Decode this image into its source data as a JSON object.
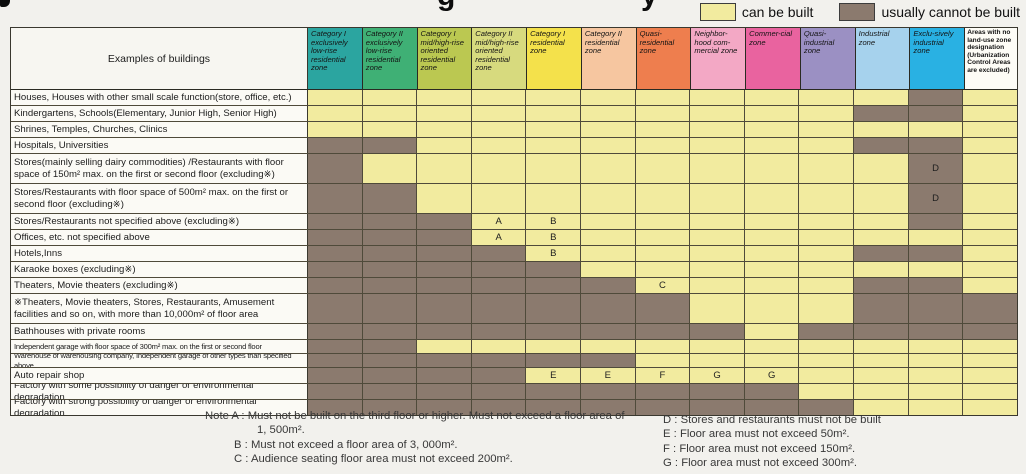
{
  "cropped_title": {
    "glyph1": "g",
    "glyph2": "y"
  },
  "legend": {
    "can_label": "can be built",
    "can_color": "#f2eb9f",
    "cannot_label": "usually cannot be built",
    "cannot_color": "#8b7a6e"
  },
  "table": {
    "corner_header": "Examples of buildings",
    "cell_colors": {
      "can": "#f2eb9f",
      "cannot": "#8b7a6e"
    },
    "cell_legend": {
      "Y": "can be built",
      "N": "usually cannot be built"
    },
    "columns": [
      {
        "label": "Category I exclusively low-rise residential zone",
        "color": "#2ba5a0"
      },
      {
        "label": "Category II exclusively low-rise residential zone",
        "color": "#3fb075"
      },
      {
        "label": "Category I mid/high-rise oriented residential zone",
        "color": "#bbc851"
      },
      {
        "label": "Category II mid/high-rise oriented residential zone",
        "color": "#d7da7e"
      },
      {
        "label": "Category I residential zone",
        "color": "#f4e14b"
      },
      {
        "label": "Category II residential zone",
        "color": "#f6c6a0"
      },
      {
        "label": "Quasi-residential zone",
        "color": "#ee7e4e"
      },
      {
        "label": "Neighbor-hood com-mercial zone",
        "color": "#f3a8c5"
      },
      {
        "label": "Commer-cial zone",
        "color": "#e9639f"
      },
      {
        "label": "Quasi-industrial zone",
        "color": "#9b90c3"
      },
      {
        "label": "Industrial zone",
        "color": "#a6d2ed"
      },
      {
        "label": "Exclu-sively industrial zone",
        "color": "#29b1e3"
      },
      {
        "label": "Areas with no land-use zone designation (Urbanization Control Areas are excluded)",
        "color": "#fdfcf6"
      }
    ],
    "rows": [
      {
        "label": "Houses, Houses with other small scale function(store, office, etc.)",
        "lines": 1,
        "small": false,
        "cells": [
          "Y",
          "Y",
          "Y",
          "Y",
          "Y",
          "Y",
          "Y",
          "Y",
          "Y",
          "Y",
          "Y",
          "N",
          "Y"
        ]
      },
      {
        "label": "Kindergartens, Schools(Elementary, Junior High, Senior High)",
        "lines": 1,
        "small": false,
        "cells": [
          "Y",
          "Y",
          "Y",
          "Y",
          "Y",
          "Y",
          "Y",
          "Y",
          "Y",
          "Y",
          "N",
          "N",
          "Y"
        ]
      },
      {
        "label": "Shrines, Temples, Churches, Clinics",
        "lines": 1,
        "small": false,
        "cells": [
          "Y",
          "Y",
          "Y",
          "Y",
          "Y",
          "Y",
          "Y",
          "Y",
          "Y",
          "Y",
          "Y",
          "Y",
          "Y"
        ]
      },
      {
        "label": "Hospitals, Universities",
        "lines": 1,
        "small": false,
        "cells": [
          "N",
          "N",
          "Y",
          "Y",
          "Y",
          "Y",
          "Y",
          "Y",
          "Y",
          "Y",
          "N",
          "N",
          "Y"
        ]
      },
      {
        "label": "Stores(mainly selling dairy commodities) /Restaurants with floor space of 150m² max. on the first or second floor (excluding※)",
        "lines": 2,
        "small": false,
        "cells": [
          "N",
          "Y",
          "Y",
          "Y",
          "Y",
          "Y",
          "Y",
          "Y",
          "Y",
          "Y",
          "Y",
          "D",
          "Y"
        ]
      },
      {
        "label": "Stores/Restaurants with floor space of 500m² max. on the first or second floor (excluding※)",
        "lines": 2,
        "small": false,
        "cells": [
          "N",
          "N",
          "Y",
          "Y",
          "Y",
          "Y",
          "Y",
          "Y",
          "Y",
          "Y",
          "Y",
          "D",
          "Y"
        ]
      },
      {
        "label": "Stores/Restaurants not specified above (excluding※)",
        "lines": 1,
        "small": false,
        "cells": [
          "N",
          "N",
          "N",
          "A",
          "B",
          "Y",
          "Y",
          "Y",
          "Y",
          "Y",
          "Y",
          "N",
          "Y"
        ]
      },
      {
        "label": "Offices, etc. not specified above",
        "lines": 1,
        "small": false,
        "cells": [
          "N",
          "N",
          "N",
          "A",
          "B",
          "Y",
          "Y",
          "Y",
          "Y",
          "Y",
          "Y",
          "Y",
          "Y"
        ]
      },
      {
        "label": "Hotels,Inns",
        "lines": 1,
        "small": false,
        "cells": [
          "N",
          "N",
          "N",
          "N",
          "B",
          "Y",
          "Y",
          "Y",
          "Y",
          "Y",
          "N",
          "N",
          "Y"
        ]
      },
      {
        "label": "Karaoke boxes (excluding※)",
        "lines": 1,
        "small": false,
        "cells": [
          "N",
          "N",
          "N",
          "N",
          "N",
          "Y",
          "Y",
          "Y",
          "Y",
          "Y",
          "Y",
          "Y",
          "Y"
        ]
      },
      {
        "label": "Theaters, Movie theaters (excluding※)",
        "lines": 1,
        "small": false,
        "cells": [
          "N",
          "N",
          "N",
          "N",
          "N",
          "N",
          "C",
          "Y",
          "Y",
          "Y",
          "N",
          "N",
          "Y"
        ]
      },
      {
        "label": "※Theaters, Movie theaters, Stores, Restaurants, Amusement facilities and so on, with more than 10,000m² of floor area",
        "lines": 2,
        "small": false,
        "cells": [
          "N",
          "N",
          "N",
          "N",
          "N",
          "N",
          "N",
          "Y",
          "Y",
          "Y",
          "N",
          "N",
          "N"
        ]
      },
      {
        "label": "Bathhouses with private rooms",
        "lines": 1,
        "small": false,
        "cells": [
          "N",
          "N",
          "N",
          "N",
          "N",
          "N",
          "N",
          "N",
          "Y",
          "N",
          "N",
          "N",
          "N"
        ]
      },
      {
        "label": "Independent garage with floor space of 300m² max. on the first or second floor",
        "lines": 1,
        "small": true,
        "cells": [
          "N",
          "N",
          "Y",
          "Y",
          "Y",
          "Y",
          "Y",
          "Y",
          "Y",
          "Y",
          "Y",
          "Y",
          "Y"
        ]
      },
      {
        "label": "Warehouse of warehousing company, Independent garage of other types than specified above",
        "lines": 1,
        "small": true,
        "cells": [
          "N",
          "N",
          "N",
          "N",
          "N",
          "N",
          "Y",
          "Y",
          "Y",
          "Y",
          "Y",
          "Y",
          "Y"
        ]
      },
      {
        "label": "Auto repair shop",
        "lines": 1,
        "small": false,
        "cells": [
          "N",
          "N",
          "N",
          "N",
          "E",
          "E",
          "F",
          "G",
          "G",
          "Y",
          "Y",
          "Y",
          "Y"
        ]
      },
      {
        "label": "Factory with some possibility of danger or environmental degradation",
        "lines": 1,
        "small": false,
        "cells": [
          "N",
          "N",
          "N",
          "N",
          "N",
          "N",
          "N",
          "N",
          "N",
          "Y",
          "Y",
          "Y",
          "Y"
        ]
      },
      {
        "label": "Factory with strong possibility of danger or environmental degradation",
        "lines": 1,
        "small": false,
        "cells": [
          "N",
          "N",
          "N",
          "N",
          "N",
          "N",
          "N",
          "N",
          "N",
          "N",
          "Y",
          "Y",
          "Y"
        ]
      }
    ]
  },
  "notes": {
    "a1": "Note A : Must not be built on the third floor or higher. Must not exceed a floor area of",
    "a2": "1, 500m².",
    "b": "B : Must not exceed a floor area of 3, 000m².",
    "c": "C : Audience seating floor area must not exceed 200m².",
    "d": "D : Stores and restaurants must not be built",
    "e": "E : Floor area must not exceed 50m².",
    "f": "F : Floor area must not exceed 150m².",
    "g": "G : Floor area must not exceed 300m²."
  }
}
